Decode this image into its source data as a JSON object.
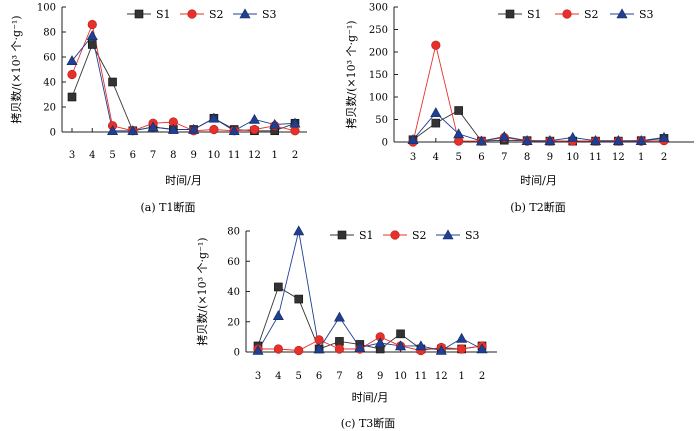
{
  "legend_labels": [
    "S1",
    "S2",
    "S3"
  ],
  "series_colors": {
    "S1": "#333333",
    "S2": "#e8302a",
    "S3": "#1f3f93"
  },
  "series_markers": {
    "S1": "square",
    "S2": "circle",
    "S3": "triangle"
  },
  "chart_data": [
    {
      "type": "line",
      "panel": "T1",
      "caption": "(a)  T1断面",
      "xlabel": "时间/月",
      "ylabel": "拷贝数/(×10³ 个·g⁻¹)",
      "categories": [
        "3",
        "4",
        "5",
        "6",
        "7",
        "8",
        "9",
        "10",
        "11",
        "12",
        "1",
        "2"
      ],
      "ylim": [
        0,
        100
      ],
      "yticks": [
        0,
        20,
        40,
        60,
        80,
        100
      ],
      "series": [
        {
          "name": "S1",
          "values": [
            28,
            70,
            40,
            1,
            4,
            2,
            2,
            11,
            2,
            1,
            1,
            7
          ]
        },
        {
          "name": "S2",
          "values": [
            46,
            86,
            5,
            1,
            7,
            8,
            1,
            2,
            1,
            2,
            5,
            1
          ]
        },
        {
          "name": "S3",
          "values": [
            57,
            77,
            1,
            1,
            4,
            2,
            2,
            11,
            1,
            10,
            6,
            7
          ]
        }
      ]
    },
    {
      "type": "line",
      "panel": "T2",
      "caption": "(b)  T2断面",
      "xlabel": "时间/月",
      "ylabel": "拷贝数/(×10³ 个·g⁻¹)",
      "categories": [
        "3",
        "4",
        "5",
        "6",
        "7",
        "8",
        "9",
        "10",
        "11",
        "12",
        "1",
        "2"
      ],
      "ylim": [
        0,
        300
      ],
      "yticks": [
        0,
        50,
        100,
        150,
        200,
        250,
        300
      ],
      "series": [
        {
          "name": "S1",
          "values": [
            5,
            42,
            70,
            2,
            4,
            3,
            2,
            2,
            2,
            2,
            3,
            8
          ]
        },
        {
          "name": "S2",
          "values": [
            0,
            215,
            2,
            2,
            10,
            2,
            2,
            2,
            2,
            2,
            2,
            3
          ]
        },
        {
          "name": "S3",
          "values": [
            5,
            65,
            18,
            2,
            12,
            3,
            3,
            10,
            3,
            3,
            3,
            10
          ]
        }
      ]
    },
    {
      "type": "line",
      "panel": "T3",
      "caption": "(c)  T3断面",
      "xlabel": "时间/月",
      "ylabel": "拷贝数/(×10³ 个·g⁻¹)",
      "categories": [
        "3",
        "4",
        "5",
        "6",
        "7",
        "8",
        "9",
        "10",
        "11",
        "12",
        "1",
        "2"
      ],
      "ylim": [
        0,
        80
      ],
      "yticks": [
        0,
        20,
        40,
        60,
        80
      ],
      "series": [
        {
          "name": "S1",
          "values": [
            4,
            43,
            35,
            2,
            7,
            5,
            2,
            12,
            2,
            2,
            2,
            4
          ]
        },
        {
          "name": "S2",
          "values": [
            2,
            2,
            1,
            8,
            2,
            2,
            10,
            4,
            1,
            3,
            2,
            4
          ]
        },
        {
          "name": "S3",
          "values": [
            1,
            24,
            80,
            2,
            23,
            3,
            6,
            4,
            4,
            1,
            9,
            2
          ]
        }
      ]
    }
  ]
}
